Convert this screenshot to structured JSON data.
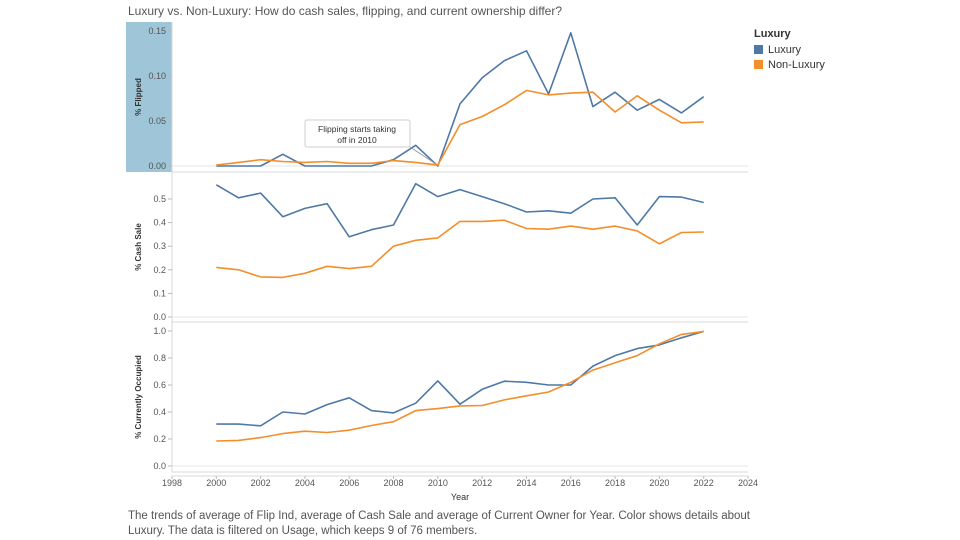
{
  "title": "Luxury vs. Non-Luxury: How do cash sales, flipping, and current ownership differ?",
  "legend": {
    "title": "Luxury",
    "items": [
      {
        "label": "Luxury",
        "color": "#4e79a7"
      },
      {
        "label": "Non-Luxury",
        "color": "#f28e2b"
      }
    ]
  },
  "caption": "The trends of average of Flip Ind, average of Cash Sale and average of Current Owner for Year.  Color shows details about Luxury. The data is filtered on Usage, which keeps 9 of 76 members.",
  "annotation": {
    "line1": "Flipping starts taking",
    "line2": "off in 2010"
  },
  "chart_data": [
    {
      "type": "line",
      "ylabel": "% Flipped",
      "ylim": [
        0,
        0.15
      ],
      "yticks": [
        "0.00",
        "0.05",
        "0.10",
        "0.15"
      ],
      "ytick_values": [
        0,
        0.05,
        0.1,
        0.15
      ],
      "highlight_color": "#9ec5d8",
      "x": [
        2000,
        2001,
        2002,
        2003,
        2004,
        2005,
        2006,
        2007,
        2008,
        2009,
        2010,
        2011,
        2012,
        2013,
        2014,
        2015,
        2016,
        2017,
        2018,
        2019,
        2020,
        2021,
        2022
      ],
      "series": [
        {
          "name": "Luxury",
          "values": [
            0.0,
            0.0,
            0.0,
            0.013,
            0.0,
            0.0,
            0.0,
            0.0,
            0.007,
            0.023,
            0.0,
            0.069,
            0.098,
            0.117,
            0.128,
            0.08,
            0.148,
            0.066,
            0.082,
            0.062,
            0.074,
            0.059,
            0.077
          ]
        },
        {
          "name": "Non-Luxury",
          "values": [
            0.001,
            0.004,
            0.007,
            0.005,
            0.004,
            0.005,
            0.003,
            0.003,
            0.006,
            0.004,
            0.001,
            0.046,
            0.055,
            0.068,
            0.084,
            0.079,
            0.081,
            0.082,
            0.06,
            0.078,
            0.062,
            0.048,
            0.049
          ]
        }
      ]
    },
    {
      "type": "line",
      "ylabel": "% Cash Sale",
      "ylim": [
        0,
        0.55
      ],
      "yticks": [
        "0.0",
        "0.1",
        "0.2",
        "0.3",
        "0.4",
        "0.5"
      ],
      "ytick_values": [
        0,
        0.1,
        0.2,
        0.3,
        0.4,
        0.5
      ],
      "x": [
        2000,
        2001,
        2002,
        2003,
        2004,
        2005,
        2006,
        2007,
        2008,
        2009,
        2010,
        2011,
        2012,
        2013,
        2014,
        2015,
        2016,
        2017,
        2018,
        2019,
        2020,
        2021,
        2022
      ],
      "series": [
        {
          "name": "Luxury",
          "values": [
            0.56,
            0.505,
            0.525,
            0.425,
            0.46,
            0.48,
            0.34,
            0.37,
            0.39,
            0.565,
            0.51,
            0.54,
            0.51,
            0.48,
            0.445,
            0.45,
            0.44,
            0.5,
            0.505,
            0.39,
            0.51,
            0.508,
            0.485
          ]
        },
        {
          "name": "Non-Luxury",
          "values": [
            0.21,
            0.2,
            0.17,
            0.168,
            0.185,
            0.215,
            0.205,
            0.215,
            0.3,
            0.325,
            0.335,
            0.405,
            0.405,
            0.41,
            0.375,
            0.372,
            0.385,
            0.372,
            0.385,
            0.365,
            0.31,
            0.358,
            0.36
          ]
        }
      ]
    },
    {
      "type": "line",
      "ylabel": "% Currently Occupied",
      "ylim": [
        0,
        1.0
      ],
      "yticks": [
        "0.0",
        "0.2",
        "0.4",
        "0.6",
        "0.8",
        "1.0"
      ],
      "ytick_values": [
        0,
        0.2,
        0.4,
        0.6,
        0.8,
        1.0
      ],
      "xlabel": "Year",
      "xticks": [
        "1998",
        "2000",
        "2002",
        "2004",
        "2006",
        "2008",
        "2010",
        "2012",
        "2014",
        "2016",
        "2018",
        "2020",
        "2022",
        "2024"
      ],
      "xtick_values": [
        1998,
        2000,
        2002,
        2004,
        2006,
        2008,
        2010,
        2012,
        2014,
        2016,
        2018,
        2020,
        2022,
        2024
      ],
      "x": [
        2000,
        2001,
        2002,
        2003,
        2004,
        2005,
        2006,
        2007,
        2008,
        2009,
        2010,
        2011,
        2012,
        2013,
        2014,
        2015,
        2016,
        2017,
        2018,
        2019,
        2020,
        2021,
        2022
      ],
      "series": [
        {
          "name": "Luxury",
          "values": [
            0.31,
            0.31,
            0.298,
            0.4,
            0.385,
            0.455,
            0.505,
            0.41,
            0.393,
            0.465,
            0.63,
            0.458,
            0.568,
            0.628,
            0.62,
            0.6,
            0.6,
            0.74,
            0.818,
            0.87,
            0.897,
            0.95,
            0.997
          ]
        },
        {
          "name": "Non-Luxury",
          "values": [
            0.185,
            0.19,
            0.21,
            0.24,
            0.258,
            0.248,
            0.265,
            0.3,
            0.328,
            0.41,
            0.425,
            0.445,
            0.448,
            0.49,
            0.52,
            0.548,
            0.62,
            0.71,
            0.765,
            0.818,
            0.905,
            0.975,
            0.997
          ]
        }
      ]
    }
  ]
}
